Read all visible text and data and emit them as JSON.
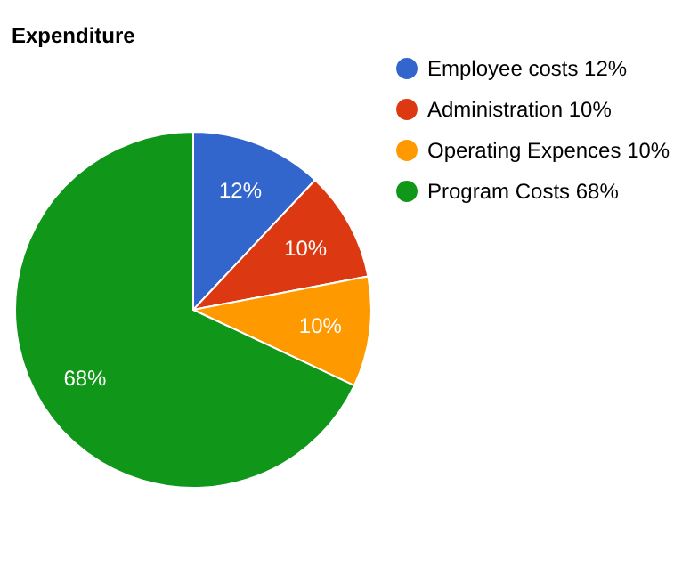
{
  "chart_data": {
    "type": "pie",
    "title": "Expenditure",
    "categories": [
      "Employee costs 12%",
      "Administration 10%",
      "Operating Expences 10%",
      "Program Costs 68%"
    ],
    "values": [
      12,
      10,
      10,
      68
    ],
    "colors": [
      "#3366cc",
      "#dc3912",
      "#ff9900",
      "#109618"
    ],
    "value_labels": [
      "12%",
      "10%",
      "10%",
      "68%"
    ],
    "legend": "right"
  }
}
